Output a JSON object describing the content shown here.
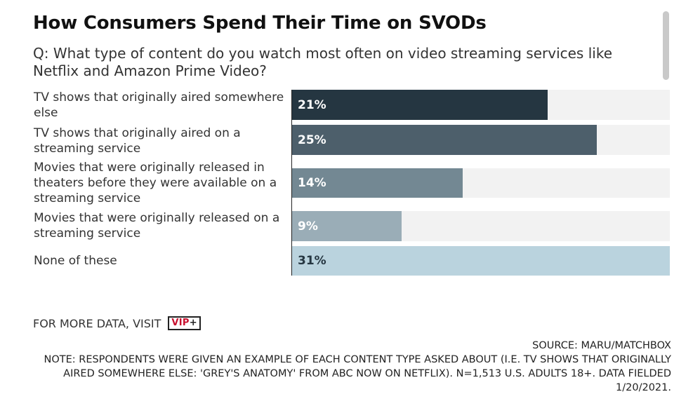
{
  "header": {
    "title": "How Consumers Spend Their Time on SVODs",
    "subtitle": "Q: What type of content do you watch most often on video streaming services like Netflix and Amazon Prime Video?"
  },
  "chart_data": {
    "type": "bar",
    "orientation": "horizontal",
    "categories": [
      "TV shows that originally aired somewhere else",
      "TV shows that originally aired on a streaming service",
      "Movies that were originally released in theaters before they were available on a streaming service",
      "Movies that were originally released on a streaming service",
      "None of these"
    ],
    "values": [
      21,
      25,
      14,
      9,
      31
    ],
    "value_labels": [
      "21%",
      "25%",
      "14%",
      "9%",
      "31%"
    ],
    "xlim": [
      0,
      31
    ],
    "bar_colors": [
      "#253641",
      "#4d5f6b",
      "#738893",
      "#9aadb7",
      "#bad3de"
    ],
    "value_label_colors": [
      "#ffffff",
      "#ffffff",
      "#ffffff",
      "#ffffff",
      "#253641"
    ],
    "track_color": "#f2f2f2",
    "grid": false,
    "legend": "none"
  },
  "footer": {
    "more_data_label": "FOR MORE DATA, VISIT",
    "vip_logo_text": "VIP",
    "vip_logo_plus": "+",
    "source": "SOURCE: MARU/MATCHBOX",
    "note": "NOTE: RESPONDENTS WERE GIVEN AN EXAMPLE OF EACH CONTENT TYPE ASKED ABOUT (I.E. TV SHOWS THAT ORIGINALLY AIRED SOMEWHERE ELSE: 'GREY'S ANATOMY' FROM ABC NOW ON NETFLIX). N=1,513 U.S. ADULTS 18+. DATA FIELDED 1/20/2021."
  }
}
